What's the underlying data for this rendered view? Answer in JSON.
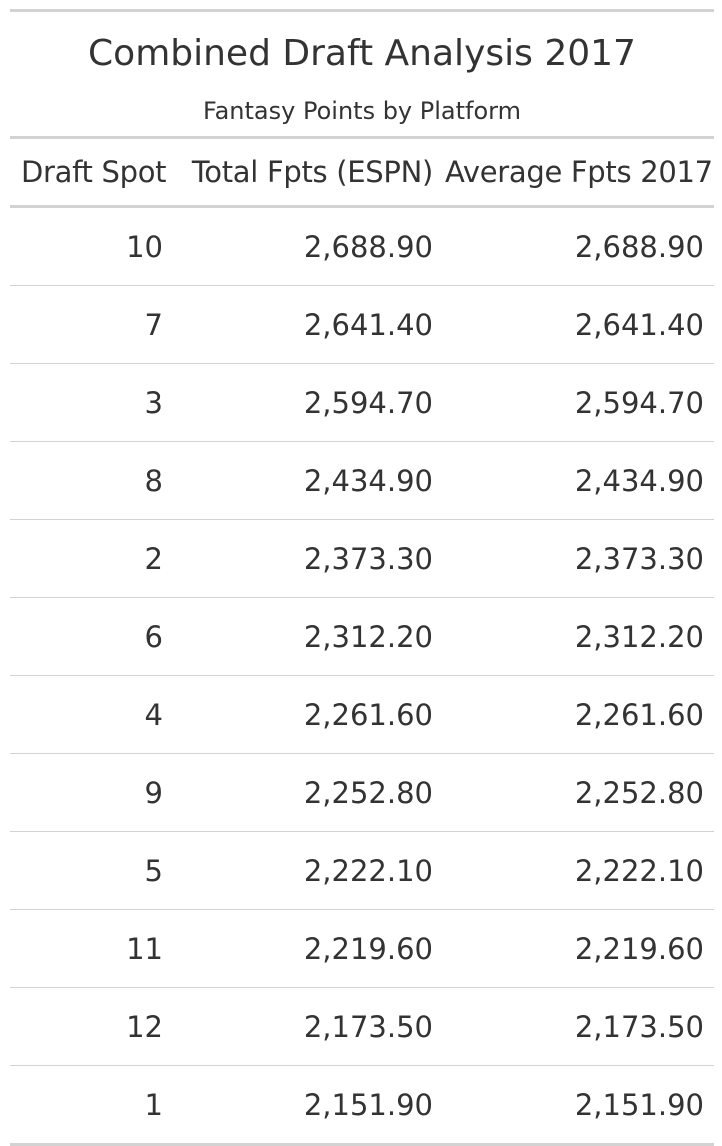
{
  "colors": {
    "text": "#333333",
    "rule": "#d3d3d3",
    "background": "#ffffff"
  },
  "chart_data": {
    "type": "table",
    "title": "Combined Draft Analysis 2017",
    "subtitle": "Fantasy Points by Platform",
    "columns": [
      "Draft Spot",
      "Total Fpts (ESPN)",
      "Average Fpts 2017"
    ],
    "rows": [
      [
        "10",
        "2,688.90",
        "2,688.90"
      ],
      [
        "7",
        "2,641.40",
        "2,641.40"
      ],
      [
        "3",
        "2,594.70",
        "2,594.70"
      ],
      [
        "8",
        "2,434.90",
        "2,434.90"
      ],
      [
        "2",
        "2,373.30",
        "2,373.30"
      ],
      [
        "6",
        "2,312.20",
        "2,312.20"
      ],
      [
        "4",
        "2,261.60",
        "2,261.60"
      ],
      [
        "9",
        "2,252.80",
        "2,252.80"
      ],
      [
        "5",
        "2,222.10",
        "2,222.10"
      ],
      [
        "11",
        "2,219.60",
        "2,219.60"
      ],
      [
        "12",
        "2,173.50",
        "2,173.50"
      ],
      [
        "1",
        "2,151.90",
        "2,151.90"
      ]
    ]
  }
}
